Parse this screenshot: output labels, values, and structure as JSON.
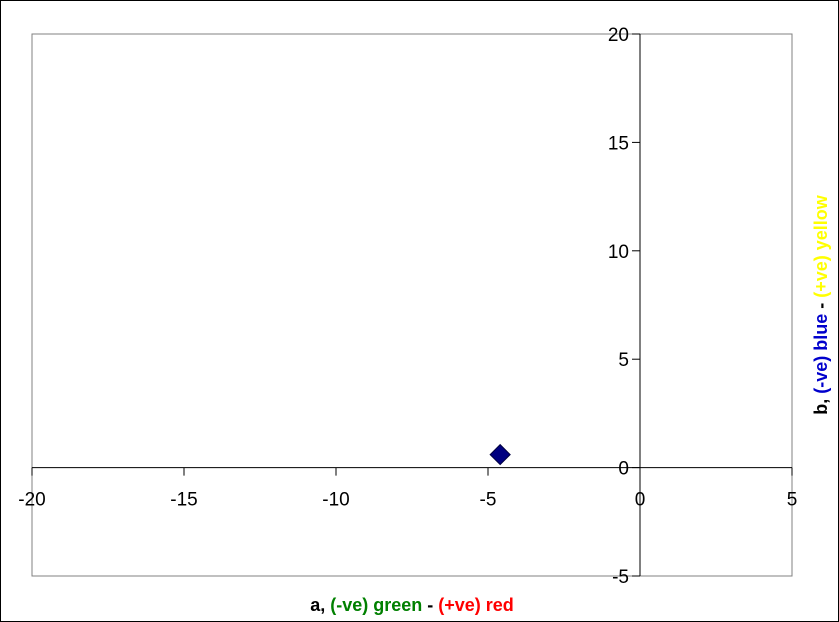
{
  "chart_data": {
    "type": "scatter",
    "title": "",
    "xlabel_parts": [
      {
        "text": "a, ",
        "color": "#000000"
      },
      {
        "text": "(-ve) green",
        "color": "#008000"
      },
      {
        "text": " - ",
        "color": "#000000"
      },
      {
        "text": "(+ve) red",
        "color": "#ff0000"
      }
    ],
    "ylabel_parts": [
      {
        "text": "b, ",
        "color": "#000000"
      },
      {
        "text": "(-ve) blue",
        "color": "#0000cc"
      },
      {
        "text": " - ",
        "color": "#000000"
      },
      {
        "text": "(+ve) yellow",
        "color": "#ffff00"
      }
    ],
    "xlim": [
      -20,
      5
    ],
    "ylim": [
      -5,
      20
    ],
    "x_ticks": [
      -20,
      -15,
      -10,
      -5,
      0,
      5
    ],
    "y_ticks": [
      -5,
      0,
      5,
      10,
      15,
      20
    ],
    "grid": false,
    "legend": "none",
    "series": [
      {
        "marker": "diamond",
        "color": "#000080",
        "points": [
          {
            "x": -4.6,
            "y": 0.6
          }
        ]
      }
    ]
  }
}
